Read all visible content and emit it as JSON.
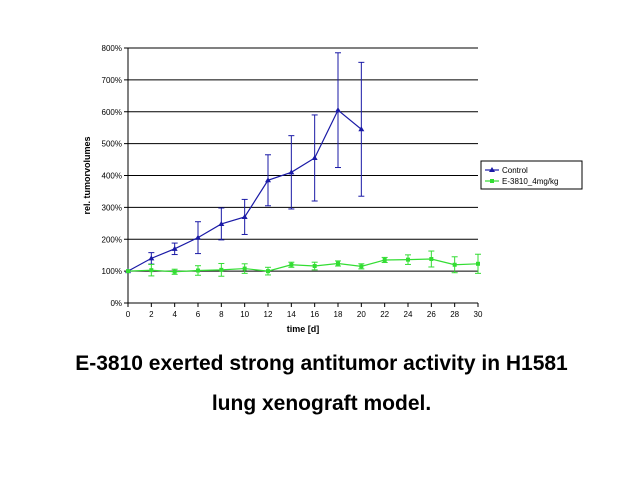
{
  "chart_data": {
    "type": "line",
    "xlabel": "time [d]",
    "ylabel": "rel. tumorvolumes",
    "xlim": [
      0,
      30
    ],
    "ylim": [
      0,
      800
    ],
    "x_ticks": [
      "0",
      "2",
      "4",
      "6",
      "8",
      "10",
      "12",
      "14",
      "16",
      "18",
      "20",
      "22",
      "24",
      "26",
      "28",
      "30"
    ],
    "y_ticks": [
      "0%",
      "100%",
      "200%",
      "300%",
      "400%",
      "500%",
      "600%",
      "700%",
      "800%"
    ],
    "gridlines": "horizontal",
    "legend_position": "right",
    "series": [
      {
        "name": "Control",
        "color": "#1a1aa6",
        "marker": "triangle",
        "x": [
          0,
          2,
          4,
          6,
          8,
          10,
          12,
          14,
          16,
          18,
          20
        ],
        "y": [
          100,
          140,
          170,
          205,
          248,
          270,
          385,
          410,
          455,
          605,
          545
        ],
        "err": [
          0,
          18,
          18,
          50,
          50,
          55,
          80,
          115,
          135,
          180,
          210
        ]
      },
      {
        "name": "E-3810_4mg/kg",
        "color": "#33dd33",
        "marker": "square",
        "x": [
          0,
          2,
          4,
          6,
          8,
          10,
          12,
          14,
          16,
          18,
          20,
          22,
          24,
          26,
          28,
          30
        ],
        "y": [
          100,
          103,
          98,
          102,
          104,
          108,
          100,
          120,
          116,
          124,
          115,
          135,
          136,
          138,
          120,
          123
        ],
        "err": [
          0,
          18,
          8,
          15,
          20,
          15,
          12,
          8,
          12,
          8,
          8,
          8,
          15,
          25,
          25,
          30
        ]
      }
    ]
  },
  "caption": {
    "line1": "E-3810 exerted strong antitumor activity in H1581",
    "line2": "lung xenograft model."
  }
}
